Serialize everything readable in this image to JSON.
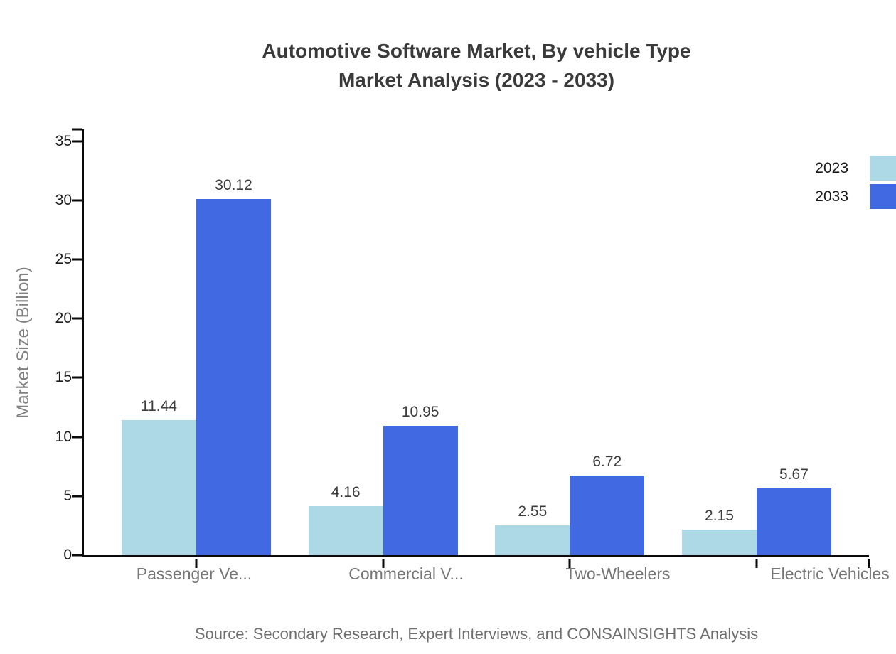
{
  "title": {
    "line1": "Automotive Software Market, By vehicle Type",
    "line2": "Market Analysis (2023 - 2033)"
  },
  "source": "Source: Secondary Research, Expert Interviews, and CONSAINSIGHTS Analysis",
  "chart_data": {
    "type": "bar",
    "title": "Automotive Software Market, By vehicle Type Market Analysis (2023 - 2033)",
    "categories": [
      "Passenger Ve...",
      "Commercial V...",
      "Two-Wheelers",
      "Electric Vehicles"
    ],
    "series": [
      {
        "name": "2023",
        "color": "#ADD8E6",
        "values": [
          11.44,
          4.16,
          2.55,
          2.15
        ]
      },
      {
        "name": "2033",
        "color": "#4169E1",
        "values": [
          30.12,
          10.95,
          6.72,
          5.67
        ]
      }
    ],
    "data_labels": [
      [
        "11.44",
        "4.16",
        "2.55",
        "2.15"
      ],
      [
        "30.12",
        "10.95",
        "6.72",
        "5.67"
      ]
    ],
    "xlabel": "",
    "ylabel": "Market Size (Billion)",
    "ylim": [
      0,
      35
    ],
    "ytick_values": [
      0,
      5,
      10,
      15,
      20,
      25,
      30,
      35
    ],
    "axis_top_units": 36,
    "grid": false,
    "legend_position": "top-right",
    "background": "#ffffff",
    "axis_color": "#0a0a0a"
  }
}
